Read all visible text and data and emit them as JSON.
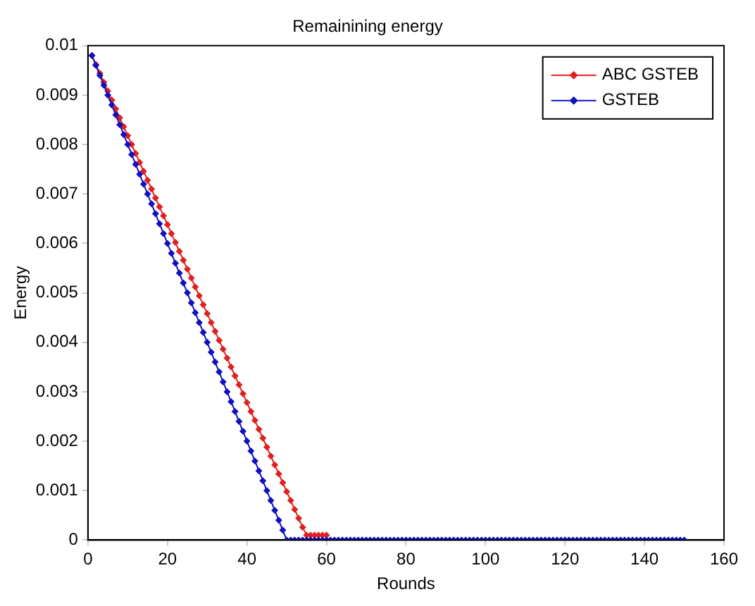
{
  "chart_data": {
    "type": "line",
    "title": "Remainining energy",
    "xlabel": "Rounds",
    "ylabel": "Energy",
    "x": [
      1,
      2,
      3,
      4,
      5,
      6,
      7,
      8,
      9,
      10,
      11,
      12,
      13,
      14,
      15,
      16,
      17,
      18,
      19,
      20,
      21,
      22,
      23,
      24,
      25,
      26,
      27,
      28,
      29,
      30,
      31,
      32,
      33,
      34,
      35,
      36,
      37,
      38,
      39,
      40,
      41,
      42,
      43,
      44,
      45,
      46,
      47,
      48,
      49,
      50,
      51,
      52,
      53,
      54,
      55,
      56,
      57,
      58,
      59,
      60,
      61,
      62,
      63,
      64,
      65,
      66,
      67,
      68,
      69,
      70,
      71,
      72,
      73,
      74,
      75,
      76,
      77,
      78,
      79,
      80,
      81,
      82,
      83,
      84,
      85,
      86,
      87,
      88,
      89,
      90,
      91,
      92,
      93,
      94,
      95,
      96,
      97,
      98,
      99,
      100,
      101,
      102,
      103,
      104,
      105,
      106,
      107,
      108,
      109,
      110,
      111,
      112,
      113,
      114,
      115,
      116,
      117,
      118,
      119,
      120,
      121,
      122,
      123,
      124,
      125,
      126,
      127,
      128,
      129,
      130,
      131,
      132,
      133,
      134,
      135,
      136,
      137,
      138,
      139,
      140,
      141,
      142,
      143,
      144,
      145,
      146,
      147,
      148,
      149,
      150
    ],
    "series": [
      {
        "name": "ABC GSTEB",
        "color": "#e02020",
        "values": [
          0.0098,
          0.00962,
          0.00944,
          0.00926,
          0.00908,
          0.0089,
          0.00872,
          0.00854,
          0.00836,
          0.00818,
          0.008,
          0.00782,
          0.00764,
          0.00746,
          0.00728,
          0.0071,
          0.00692,
          0.00674,
          0.00656,
          0.00638,
          0.0062,
          0.00602,
          0.00584,
          0.00566,
          0.00548,
          0.0053,
          0.00512,
          0.00494,
          0.00476,
          0.00458,
          0.0044,
          0.00422,
          0.00404,
          0.00386,
          0.00368,
          0.0035,
          0.00332,
          0.00314,
          0.00296,
          0.00278,
          0.0026,
          0.00242,
          0.00224,
          0.00206,
          0.00188,
          0.0017,
          0.00152,
          0.00134,
          0.00116,
          0.00098,
          0.0008,
          0.00062,
          0.00044,
          0.00026,
          0.0001,
          0.0001,
          0.0001,
          0.0001,
          0.0001,
          0.0001,
          null,
          null,
          null,
          null,
          null,
          null,
          null,
          null,
          null,
          null,
          null,
          null,
          null,
          null,
          null,
          null,
          null,
          null,
          null,
          null,
          null,
          null,
          null,
          null,
          null,
          null,
          null,
          null,
          null,
          null,
          null,
          null,
          null,
          null,
          null,
          null,
          null,
          null,
          null,
          null,
          null,
          null,
          null,
          null,
          null,
          null,
          null,
          null,
          null,
          null,
          null,
          null,
          null,
          null,
          null,
          null,
          null,
          null,
          null,
          null,
          null,
          null,
          null,
          null,
          null,
          null,
          null,
          null,
          null,
          null,
          null,
          null,
          null,
          null,
          null,
          null,
          null,
          null,
          null,
          null,
          null,
          null,
          null,
          null,
          null,
          null,
          null,
          null,
          null,
          null
        ]
      },
      {
        "name": "GSTEB",
        "color": "#1010c0",
        "values": [
          0.0098,
          0.0096,
          0.0094,
          0.0092,
          0.009,
          0.0088,
          0.0086,
          0.0084,
          0.0082,
          0.008,
          0.0078,
          0.0076,
          0.0074,
          0.0072,
          0.007,
          0.0068,
          0.0066,
          0.0064,
          0.0062,
          0.006,
          0.0058,
          0.0056,
          0.0054,
          0.0052,
          0.005,
          0.0048,
          0.0046,
          0.0044,
          0.0042,
          0.004,
          0.0038,
          0.0036,
          0.0034,
          0.0032,
          0.003,
          0.0028,
          0.0026,
          0.0024,
          0.0022,
          0.002,
          0.0018,
          0.0016,
          0.0014,
          0.0012,
          0.001,
          0.0008,
          0.0006,
          0.0004,
          0.0002,
          0,
          0,
          0,
          0,
          0,
          0,
          0,
          0,
          0,
          0,
          0,
          0,
          0,
          0,
          0,
          0,
          0,
          0,
          0,
          0,
          0,
          0,
          0,
          0,
          0,
          0,
          0,
          0,
          0,
          0,
          0,
          0,
          0,
          0,
          0,
          0,
          0,
          0,
          0,
          0,
          0,
          0,
          0,
          0,
          0,
          0,
          0,
          0,
          0,
          0,
          0,
          0,
          0,
          0,
          0,
          0,
          0,
          0,
          0,
          0,
          0,
          0,
          0,
          0,
          0,
          0,
          0,
          0,
          0,
          0,
          0,
          0,
          0,
          0,
          0,
          0,
          0,
          0,
          0,
          0,
          0,
          0,
          0,
          0,
          0,
          0,
          0,
          0,
          0,
          0,
          0,
          0,
          0,
          0,
          0,
          0,
          0,
          0,
          0,
          0,
          0
        ]
      }
    ],
    "xlim": [
      0,
      160
    ],
    "xticks": [
      0,
      20,
      40,
      60,
      80,
      100,
      120,
      140,
      160
    ],
    "ylim": [
      0,
      0.01
    ],
    "yticks": [
      0,
      0.001,
      0.002,
      0.003,
      0.004,
      0.005,
      0.006,
      0.007,
      0.008,
      0.009,
      0.01
    ],
    "grid": false,
    "legend": "top right",
    "marker": "diamond",
    "line_style": "solid"
  }
}
